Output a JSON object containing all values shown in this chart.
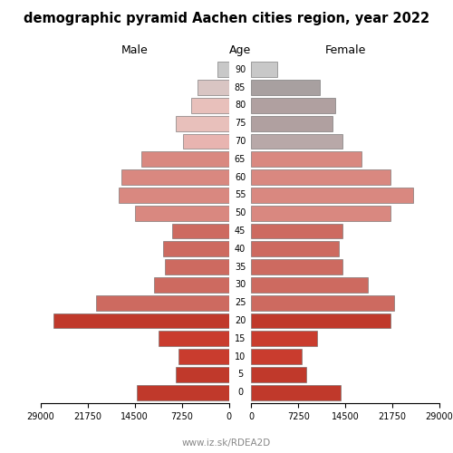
{
  "title": "demographic pyramid Aachen cities region, year 2022",
  "label_male": "Male",
  "label_female": "Female",
  "label_age": "Age",
  "watermark": "www.iz.sk/RDEA2D",
  "age_groups": [
    0,
    5,
    10,
    15,
    20,
    25,
    30,
    35,
    40,
    45,
    50,
    55,
    60,
    65,
    70,
    75,
    80,
    85,
    90
  ],
  "male": [
    14200,
    8200,
    7800,
    10800,
    27000,
    20500,
    11500,
    9800,
    10200,
    8800,
    14500,
    17000,
    16500,
    13500,
    7000,
    8200,
    5800,
    4800,
    1800
  ],
  "female": [
    13800,
    8500,
    7800,
    10200,
    21500,
    22000,
    18000,
    14000,
    13500,
    14000,
    21500,
    25000,
    21500,
    17000,
    14000,
    12500,
    13000,
    10500,
    4000
  ],
  "colors_male": [
    "#c0392b",
    "#c0392b",
    "#c93c2e",
    "#c93c2e",
    "#c0392b",
    "#cd6a60",
    "#cd6a60",
    "#cd6a60",
    "#cd6a60",
    "#cd6a60",
    "#d98880",
    "#d98880",
    "#d98880",
    "#d98880",
    "#e8b4b0",
    "#e8c0bb",
    "#e8c0bb",
    "#d9c5c3",
    "#c8c8c8"
  ],
  "colors_female": [
    "#c0392b",
    "#c0392b",
    "#c93c2e",
    "#c93c2e",
    "#c0392b",
    "#cd6a60",
    "#cd6a60",
    "#cd6a60",
    "#cd6a60",
    "#cd6a60",
    "#d98880",
    "#d98880",
    "#d98880",
    "#d98880",
    "#b8a8a8",
    "#b0a0a0",
    "#b0a0a0",
    "#a8a0a0",
    "#c8c8c8"
  ],
  "xlim": 29000,
  "xticks_male": [
    29000,
    21750,
    14500,
    7250,
    0
  ],
  "xtick_labels_male": [
    "29000",
    "21750",
    "14500",
    "7250",
    "0"
  ],
  "xticks_female": [
    0,
    7250,
    14500,
    21750,
    29000
  ],
  "xtick_labels_female": [
    "0",
    "7250",
    "14500",
    "21750",
    "29000"
  ],
  "bar_height": 0.85,
  "figsize": [
    5.0,
    5.0
  ],
  "dpi": 100
}
